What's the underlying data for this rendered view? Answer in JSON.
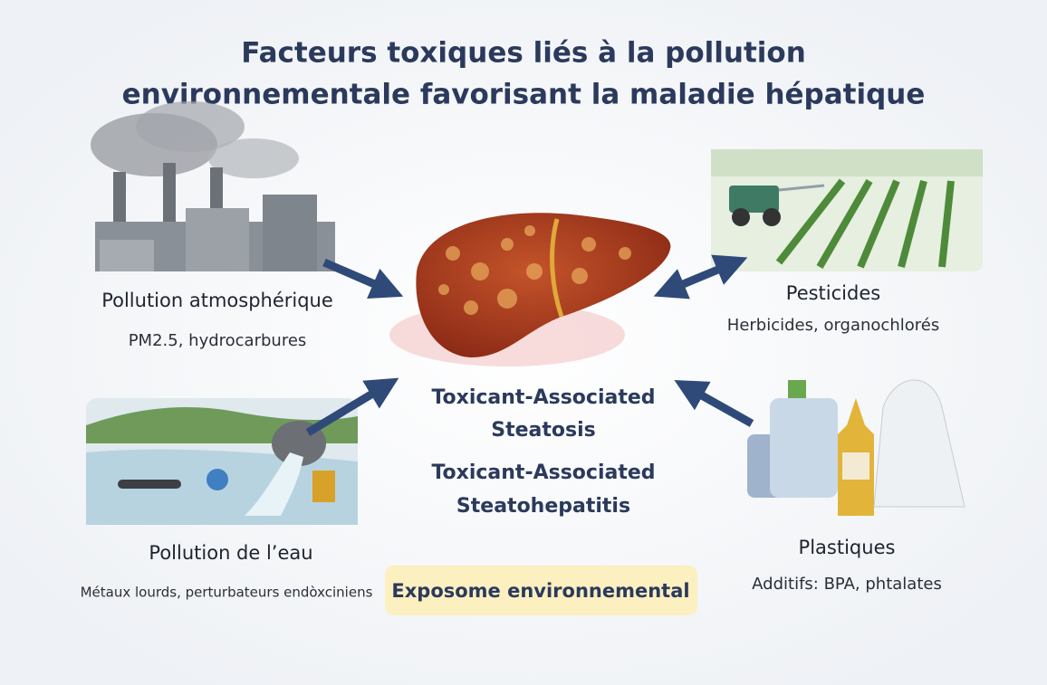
{
  "header": {
    "title_lines": [
      "Facteurs toxiques liés à la pollution",
      "environnementale favorisant la maladie hépatique"
    ]
  },
  "sources": [
    {
      "label": "Pollution atmosphérique",
      "detail": "PM2.5, hydrocarbures"
    },
    {
      "label": "Pesticides",
      "detail": "Herbicides, organochlorés"
    },
    {
      "label": "Pollution de l’eau",
      "detail": "Métaux lourds, perturbateurs endòxciniens"
    },
    {
      "label": "Plastiques",
      "detail": "Additifs: BPA, phtalates"
    }
  ],
  "center": {
    "conditions": [
      {
        "lines": [
          "Toxicant-Associated",
          "Steatosis"
        ]
      },
      {
        "lines": [
          "Toxicant-Associated",
          "Steatohepatitis"
        ]
      }
    ]
  },
  "footer": {
    "label": "Exposome environnemental"
  }
}
